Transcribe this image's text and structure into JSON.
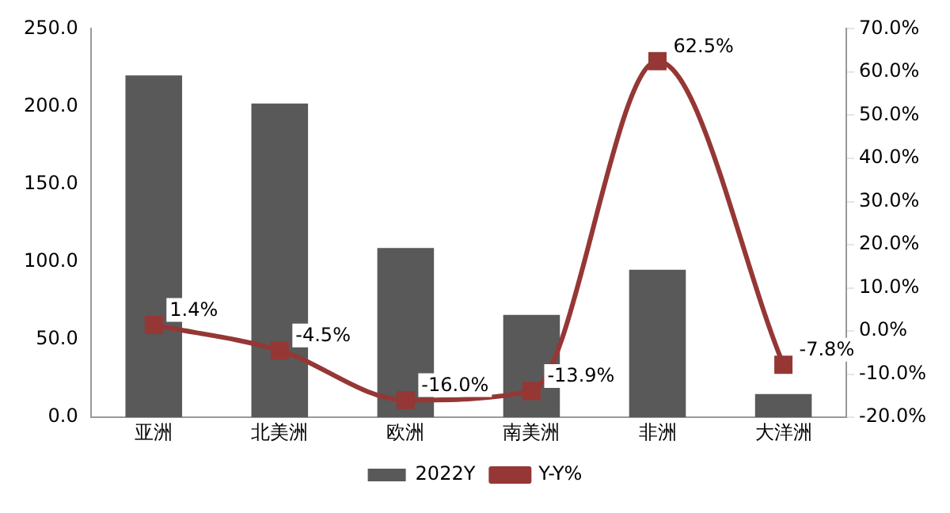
{
  "chart_data": {
    "type": "bar",
    "categories": [
      "亚洲",
      "北美洲",
      "欧洲",
      "南美洲",
      "非洲",
      "大洋洲"
    ],
    "series": [
      {
        "name": "2022Y",
        "color": "#595959",
        "values": [
          220,
          202,
          109,
          66,
          95,
          15
        ]
      },
      {
        "name": "Y-Y%",
        "type": "line",
        "axis": "y2",
        "color": "#953735",
        "marker": "square",
        "values": [
          1.4,
          -4.5,
          -16.0,
          -13.9,
          62.5,
          -7.8
        ],
        "value_labels": [
          "1.4%",
          "-4.5%",
          "-16.0%",
          "-13.9%",
          "62.5%",
          "-7.8%"
        ]
      }
    ],
    "ylim": [
      0,
      250
    ],
    "yticks": [
      {
        "value": 0,
        "label": "0.0"
      },
      {
        "value": 50,
        "label": "50.0"
      },
      {
        "value": 100,
        "label": "100.0"
      },
      {
        "value": 150,
        "label": "150.0"
      },
      {
        "value": 200,
        "label": "200.0"
      },
      {
        "value": 250,
        "label": "250.0"
      }
    ],
    "y2lim": [
      -20,
      70
    ],
    "y2ticks": [
      {
        "value": -20,
        "label": "-20.0%"
      },
      {
        "value": -10,
        "label": "-10.0%"
      },
      {
        "value": 0,
        "label": "0.0%"
      },
      {
        "value": 10,
        "label": "10.0%"
      },
      {
        "value": 20,
        "label": "20.0%"
      },
      {
        "value": 30,
        "label": "30.0%"
      },
      {
        "value": 40,
        "label": "40.0%"
      },
      {
        "value": 50,
        "label": "50.0%"
      },
      {
        "value": 60,
        "label": "60.0%"
      },
      {
        "value": 70,
        "label": "70.0%"
      }
    ],
    "grid": false,
    "legend": "bottom"
  }
}
